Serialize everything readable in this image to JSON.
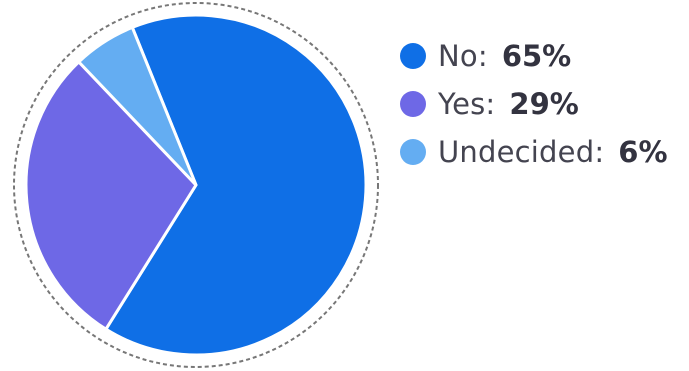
{
  "chart_data": {
    "type": "pie",
    "title": "",
    "categories": [
      "No",
      "Yes",
      "Undecided"
    ],
    "values": [
      65,
      29,
      6
    ],
    "colors": [
      "#0F6FE6",
      "#6E68E6",
      "#64ADF2"
    ],
    "legend_placement": "right",
    "legend": [
      {
        "label": "No:",
        "value_text": "65%",
        "color": "#0F6FE6"
      },
      {
        "label": "Yes:",
        "value_text": "29%",
        "color": "#6E68E6"
      },
      {
        "label": "Undecided:",
        "value_text": "6%",
        "color": "#64ADF2"
      }
    ]
  }
}
